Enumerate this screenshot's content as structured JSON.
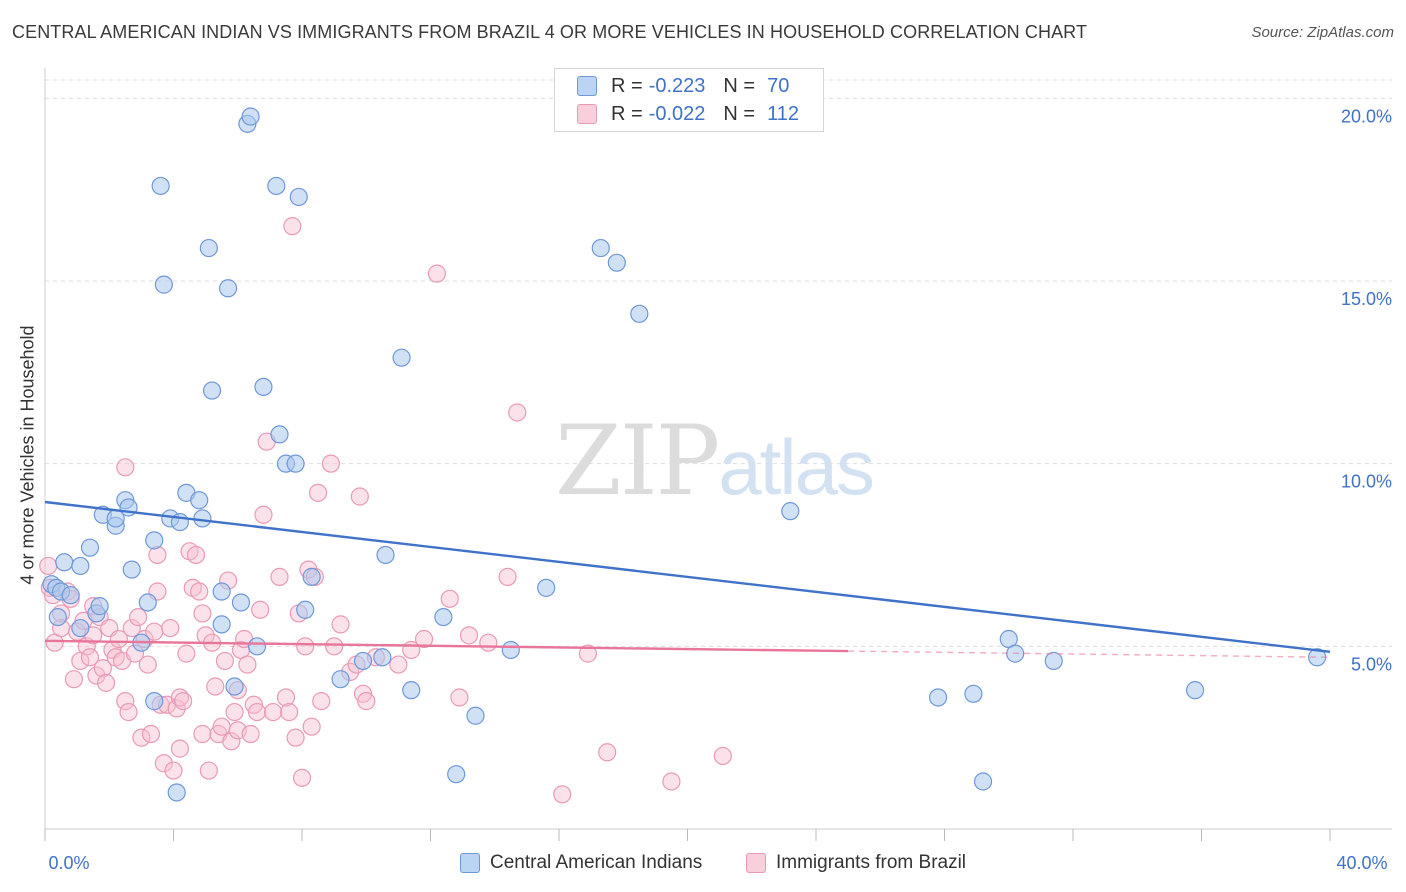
{
  "title": "CENTRAL AMERICAN INDIAN VS IMMIGRANTS FROM BRAZIL 4 OR MORE VEHICLES IN HOUSEHOLD CORRELATION CHART",
  "source": "Source: ZipAtlas.com",
  "watermark": {
    "zip": "ZIP",
    "atlas": "atlas"
  },
  "legend": {
    "series1": {
      "r_label": "R =",
      "r_value": "-0.223",
      "n_label": "N =",
      "n_value": "70"
    },
    "series2": {
      "r_label": "R =",
      "r_value": "-0.022",
      "n_label": "N =",
      "n_value": "112"
    }
  },
  "colors": {
    "blue": "#3f72c8",
    "blue_fill": "#aac8ef",
    "pink": "#e8769a",
    "pink_fill": "#f6bfd0"
  },
  "chart_data": {
    "type": "scatter",
    "title": "CENTRAL AMERICAN INDIAN VS IMMIGRANTS FROM BRAZIL 4 OR MORE VEHICLES IN HOUSEHOLD CORRELATION CHART",
    "xlabel": "",
    "ylabel": "4 or more Vehicles in Household",
    "xlim": [
      0,
      40
    ],
    "ylim": [
      0,
      20.5
    ],
    "x_tick_labels": [
      "0.0%",
      "40.0%"
    ],
    "y_ticks": [
      5,
      10,
      15,
      20
    ],
    "y_tick_labels": [
      "5.0%",
      "10.0%",
      "15.0%",
      "20.0%"
    ],
    "grid": true,
    "series": [
      {
        "name": "Central American Indians",
        "color": "#3f72c8",
        "trend": {
          "x": [
            0,
            40
          ],
          "y": [
            8.95,
            4.85
          ],
          "dashed_from": null
        },
        "points": [
          [
            0.2,
            6.7
          ],
          [
            0.35,
            6.6
          ],
          [
            0.4,
            5.8
          ],
          [
            0.5,
            6.5
          ],
          [
            0.6,
            7.3
          ],
          [
            0.8,
            6.4
          ],
          [
            1.1,
            7.2
          ],
          [
            1.1,
            5.5
          ],
          [
            1.4,
            7.7
          ],
          [
            1.6,
            5.9
          ],
          [
            1.7,
            6.1
          ],
          [
            1.8,
            8.6
          ],
          [
            2.2,
            8.3
          ],
          [
            2.2,
            8.5
          ],
          [
            2.5,
            9.0
          ],
          [
            2.6,
            8.8
          ],
          [
            2.7,
            7.1
          ],
          [
            3.0,
            5.1
          ],
          [
            3.2,
            6.2
          ],
          [
            3.4,
            3.5
          ],
          [
            3.4,
            7.9
          ],
          [
            3.6,
            17.6
          ],
          [
            3.7,
            14.9
          ],
          [
            3.9,
            8.5
          ],
          [
            4.1,
            1.0
          ],
          [
            4.2,
            8.4
          ],
          [
            4.4,
            9.2
          ],
          [
            4.8,
            9.0
          ],
          [
            4.9,
            8.5
          ],
          [
            5.1,
            15.9
          ],
          [
            5.2,
            12.0
          ],
          [
            5.5,
            6.5
          ],
          [
            5.5,
            5.6
          ],
          [
            5.7,
            14.8
          ],
          [
            5.9,
            3.9
          ],
          [
            6.1,
            6.2
          ],
          [
            6.3,
            19.3
          ],
          [
            6.4,
            19.5
          ],
          [
            6.6,
            5.0
          ],
          [
            6.8,
            12.1
          ],
          [
            7.2,
            17.6
          ],
          [
            7.3,
            10.8
          ],
          [
            7.5,
            10.0
          ],
          [
            7.8,
            10.0
          ],
          [
            7.9,
            17.3
          ],
          [
            8.1,
            6.0
          ],
          [
            8.3,
            6.9
          ],
          [
            9.2,
            4.1
          ],
          [
            9.9,
            4.6
          ],
          [
            10.5,
            4.7
          ],
          [
            10.6,
            7.5
          ],
          [
            11.1,
            12.9
          ],
          [
            11.4,
            3.8
          ],
          [
            12.4,
            5.8
          ],
          [
            12.8,
            1.5
          ],
          [
            13.4,
            3.1
          ],
          [
            14.5,
            4.9
          ],
          [
            15.6,
            6.6
          ],
          [
            17.3,
            15.9
          ],
          [
            17.8,
            15.5
          ],
          [
            18.5,
            14.1
          ],
          [
            23.2,
            8.7
          ],
          [
            27.8,
            3.6
          ],
          [
            28.9,
            3.7
          ],
          [
            29.2,
            1.3
          ],
          [
            30.0,
            5.2
          ],
          [
            30.2,
            4.8
          ],
          [
            31.4,
            4.6
          ],
          [
            35.8,
            3.8
          ],
          [
            39.6,
            4.7
          ]
        ]
      },
      {
        "name": "Immigrants from Brazil",
        "color": "#e8769a",
        "trend": {
          "x": [
            0,
            40
          ],
          "y": [
            5.15,
            4.7
          ],
          "dashed_from": 25
        },
        "points": [
          [
            0.1,
            7.2
          ],
          [
            0.15,
            6.6
          ],
          [
            0.25,
            6.4
          ],
          [
            0.3,
            5.1
          ],
          [
            0.5,
            5.9
          ],
          [
            0.5,
            5.5
          ],
          [
            0.7,
            6.5
          ],
          [
            0.8,
            6.3
          ],
          [
            0.9,
            4.1
          ],
          [
            1.0,
            5.4
          ],
          [
            1.1,
            4.6
          ],
          [
            1.2,
            5.7
          ],
          [
            1.3,
            5.0
          ],
          [
            1.4,
            4.7
          ],
          [
            1.5,
            5.3
          ],
          [
            1.5,
            6.1
          ],
          [
            1.6,
            4.2
          ],
          [
            1.7,
            5.8
          ],
          [
            1.8,
            4.4
          ],
          [
            1.9,
            4.0
          ],
          [
            2.0,
            5.5
          ],
          [
            2.1,
            4.9
          ],
          [
            2.2,
            4.7
          ],
          [
            2.3,
            5.2
          ],
          [
            2.4,
            4.6
          ],
          [
            2.5,
            9.9
          ],
          [
            2.5,
            3.5
          ],
          [
            2.6,
            3.2
          ],
          [
            2.7,
            5.5
          ],
          [
            2.8,
            4.8
          ],
          [
            2.9,
            5.8
          ],
          [
            3.0,
            2.5
          ],
          [
            3.1,
            5.2
          ],
          [
            3.2,
            4.5
          ],
          [
            3.3,
            2.6
          ],
          [
            3.4,
            5.4
          ],
          [
            3.5,
            7.5
          ],
          [
            3.5,
            6.5
          ],
          [
            3.6,
            3.4
          ],
          [
            3.7,
            1.8
          ],
          [
            3.8,
            3.4
          ],
          [
            3.9,
            5.5
          ],
          [
            4.0,
            1.6
          ],
          [
            4.1,
            3.3
          ],
          [
            4.2,
            3.6
          ],
          [
            4.2,
            2.2
          ],
          [
            4.3,
            3.5
          ],
          [
            4.4,
            4.8
          ],
          [
            4.5,
            7.6
          ],
          [
            4.6,
            6.6
          ],
          [
            4.7,
            7.5
          ],
          [
            4.8,
            6.5
          ],
          [
            4.9,
            5.9
          ],
          [
            4.9,
            2.6
          ],
          [
            5.0,
            5.3
          ],
          [
            5.1,
            1.6
          ],
          [
            5.2,
            5.1
          ],
          [
            5.3,
            3.9
          ],
          [
            5.4,
            2.6
          ],
          [
            5.5,
            2.8
          ],
          [
            5.6,
            4.6
          ],
          [
            5.7,
            6.8
          ],
          [
            5.8,
            2.4
          ],
          [
            5.9,
            3.2
          ],
          [
            6.0,
            2.7
          ],
          [
            6.0,
            3.8
          ],
          [
            6.1,
            4.9
          ],
          [
            6.2,
            5.2
          ],
          [
            6.3,
            4.5
          ],
          [
            6.4,
            2.6
          ],
          [
            6.5,
            3.4
          ],
          [
            6.6,
            3.2
          ],
          [
            6.7,
            6.0
          ],
          [
            6.8,
            8.6
          ],
          [
            6.9,
            10.6
          ],
          [
            7.1,
            3.2
          ],
          [
            7.3,
            6.9
          ],
          [
            7.5,
            3.6
          ],
          [
            7.6,
            3.2
          ],
          [
            7.7,
            16.5
          ],
          [
            7.8,
            2.5
          ],
          [
            7.9,
            5.9
          ],
          [
            8.0,
            1.4
          ],
          [
            8.1,
            5.0
          ],
          [
            8.2,
            7.1
          ],
          [
            8.3,
            2.8
          ],
          [
            8.4,
            6.9
          ],
          [
            8.5,
            9.2
          ],
          [
            8.6,
            3.5
          ],
          [
            8.9,
            10.0
          ],
          [
            9.0,
            5.0
          ],
          [
            9.2,
            5.6
          ],
          [
            9.5,
            4.3
          ],
          [
            9.7,
            4.5
          ],
          [
            9.8,
            9.1
          ],
          [
            9.9,
            3.7
          ],
          [
            10.0,
            3.5
          ],
          [
            10.3,
            4.7
          ],
          [
            11.0,
            4.5
          ],
          [
            11.4,
            4.9
          ],
          [
            11.8,
            5.2
          ],
          [
            12.2,
            15.2
          ],
          [
            12.6,
            6.3
          ],
          [
            12.9,
            3.6
          ],
          [
            13.2,
            5.3
          ],
          [
            13.8,
            5.1
          ],
          [
            14.4,
            6.9
          ],
          [
            14.7,
            11.4
          ],
          [
            16.1,
            0.95
          ],
          [
            16.9,
            4.8
          ],
          [
            17.5,
            2.1
          ],
          [
            19.5,
            1.3
          ],
          [
            21.1,
            2.0
          ]
        ]
      }
    ]
  },
  "bottom_legend": [
    {
      "label": "Central American Indians"
    },
    {
      "label": "Immigrants from Brazil"
    }
  ]
}
